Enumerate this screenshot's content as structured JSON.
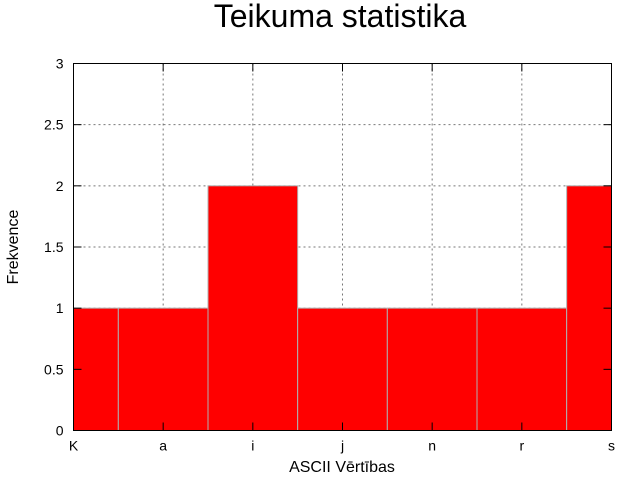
{
  "chart_data": {
    "type": "bar",
    "title": "Teikuma statistika",
    "xlabel": "ASCII Vērtības",
    "ylabel": "Frekvence",
    "categories": [
      "K",
      "a",
      "i",
      "j",
      "n",
      "r",
      "s"
    ],
    "values": [
      1,
      1,
      2,
      1,
      1,
      1,
      2
    ],
    "ylim": [
      0,
      3
    ],
    "yticks": [
      "0",
      "0.5",
      "1",
      "1.5",
      "2",
      "2.5",
      "3"
    ],
    "grid": true,
    "bar_color": "#ff0000"
  }
}
